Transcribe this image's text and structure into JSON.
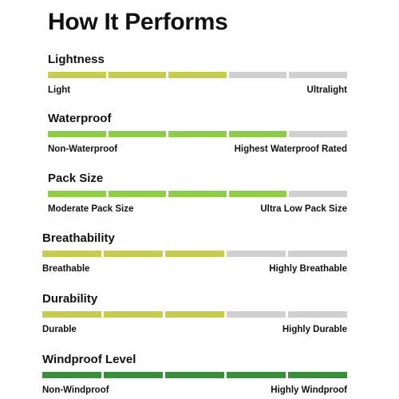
{
  "title": "How It Performs",
  "colors": {
    "yellow_green": "#c6cc4e",
    "light_green": "#8fcc4a",
    "dark_green": "#3a8f3c",
    "empty": "#d0d0d0"
  },
  "metrics": [
    {
      "name": "Lightness",
      "min_label": "Light",
      "max_label": "Ultralight",
      "filled": 3,
      "total": 5,
      "color": "#c6cc4e"
    },
    {
      "name": "Waterproof",
      "min_label": "Non-Waterproof",
      "max_label": "Highest Waterproof Rated",
      "filled": 4,
      "total": 5,
      "color": "#8fcc4a"
    },
    {
      "name": "Pack Size",
      "min_label": "Moderate Pack Size",
      "max_label": "Ultra Low Pack Size",
      "filled": 4,
      "total": 5,
      "color": "#8fcc4a"
    },
    {
      "name": "Breathability",
      "min_label": "Breathable",
      "max_label": "Highly Breathable",
      "filled": 3,
      "total": 5,
      "color": "#c6cc4e"
    },
    {
      "name": "Durability",
      "min_label": "Durable",
      "max_label": "Highly Durable",
      "filled": 3,
      "total": 5,
      "color": "#c6cc4e"
    },
    {
      "name": "Windproof Level",
      "min_label": "Non-Windproof",
      "max_label": "Highly Windproof",
      "filled": 5,
      "total": 5,
      "color": "#3a8f3c"
    }
  ]
}
